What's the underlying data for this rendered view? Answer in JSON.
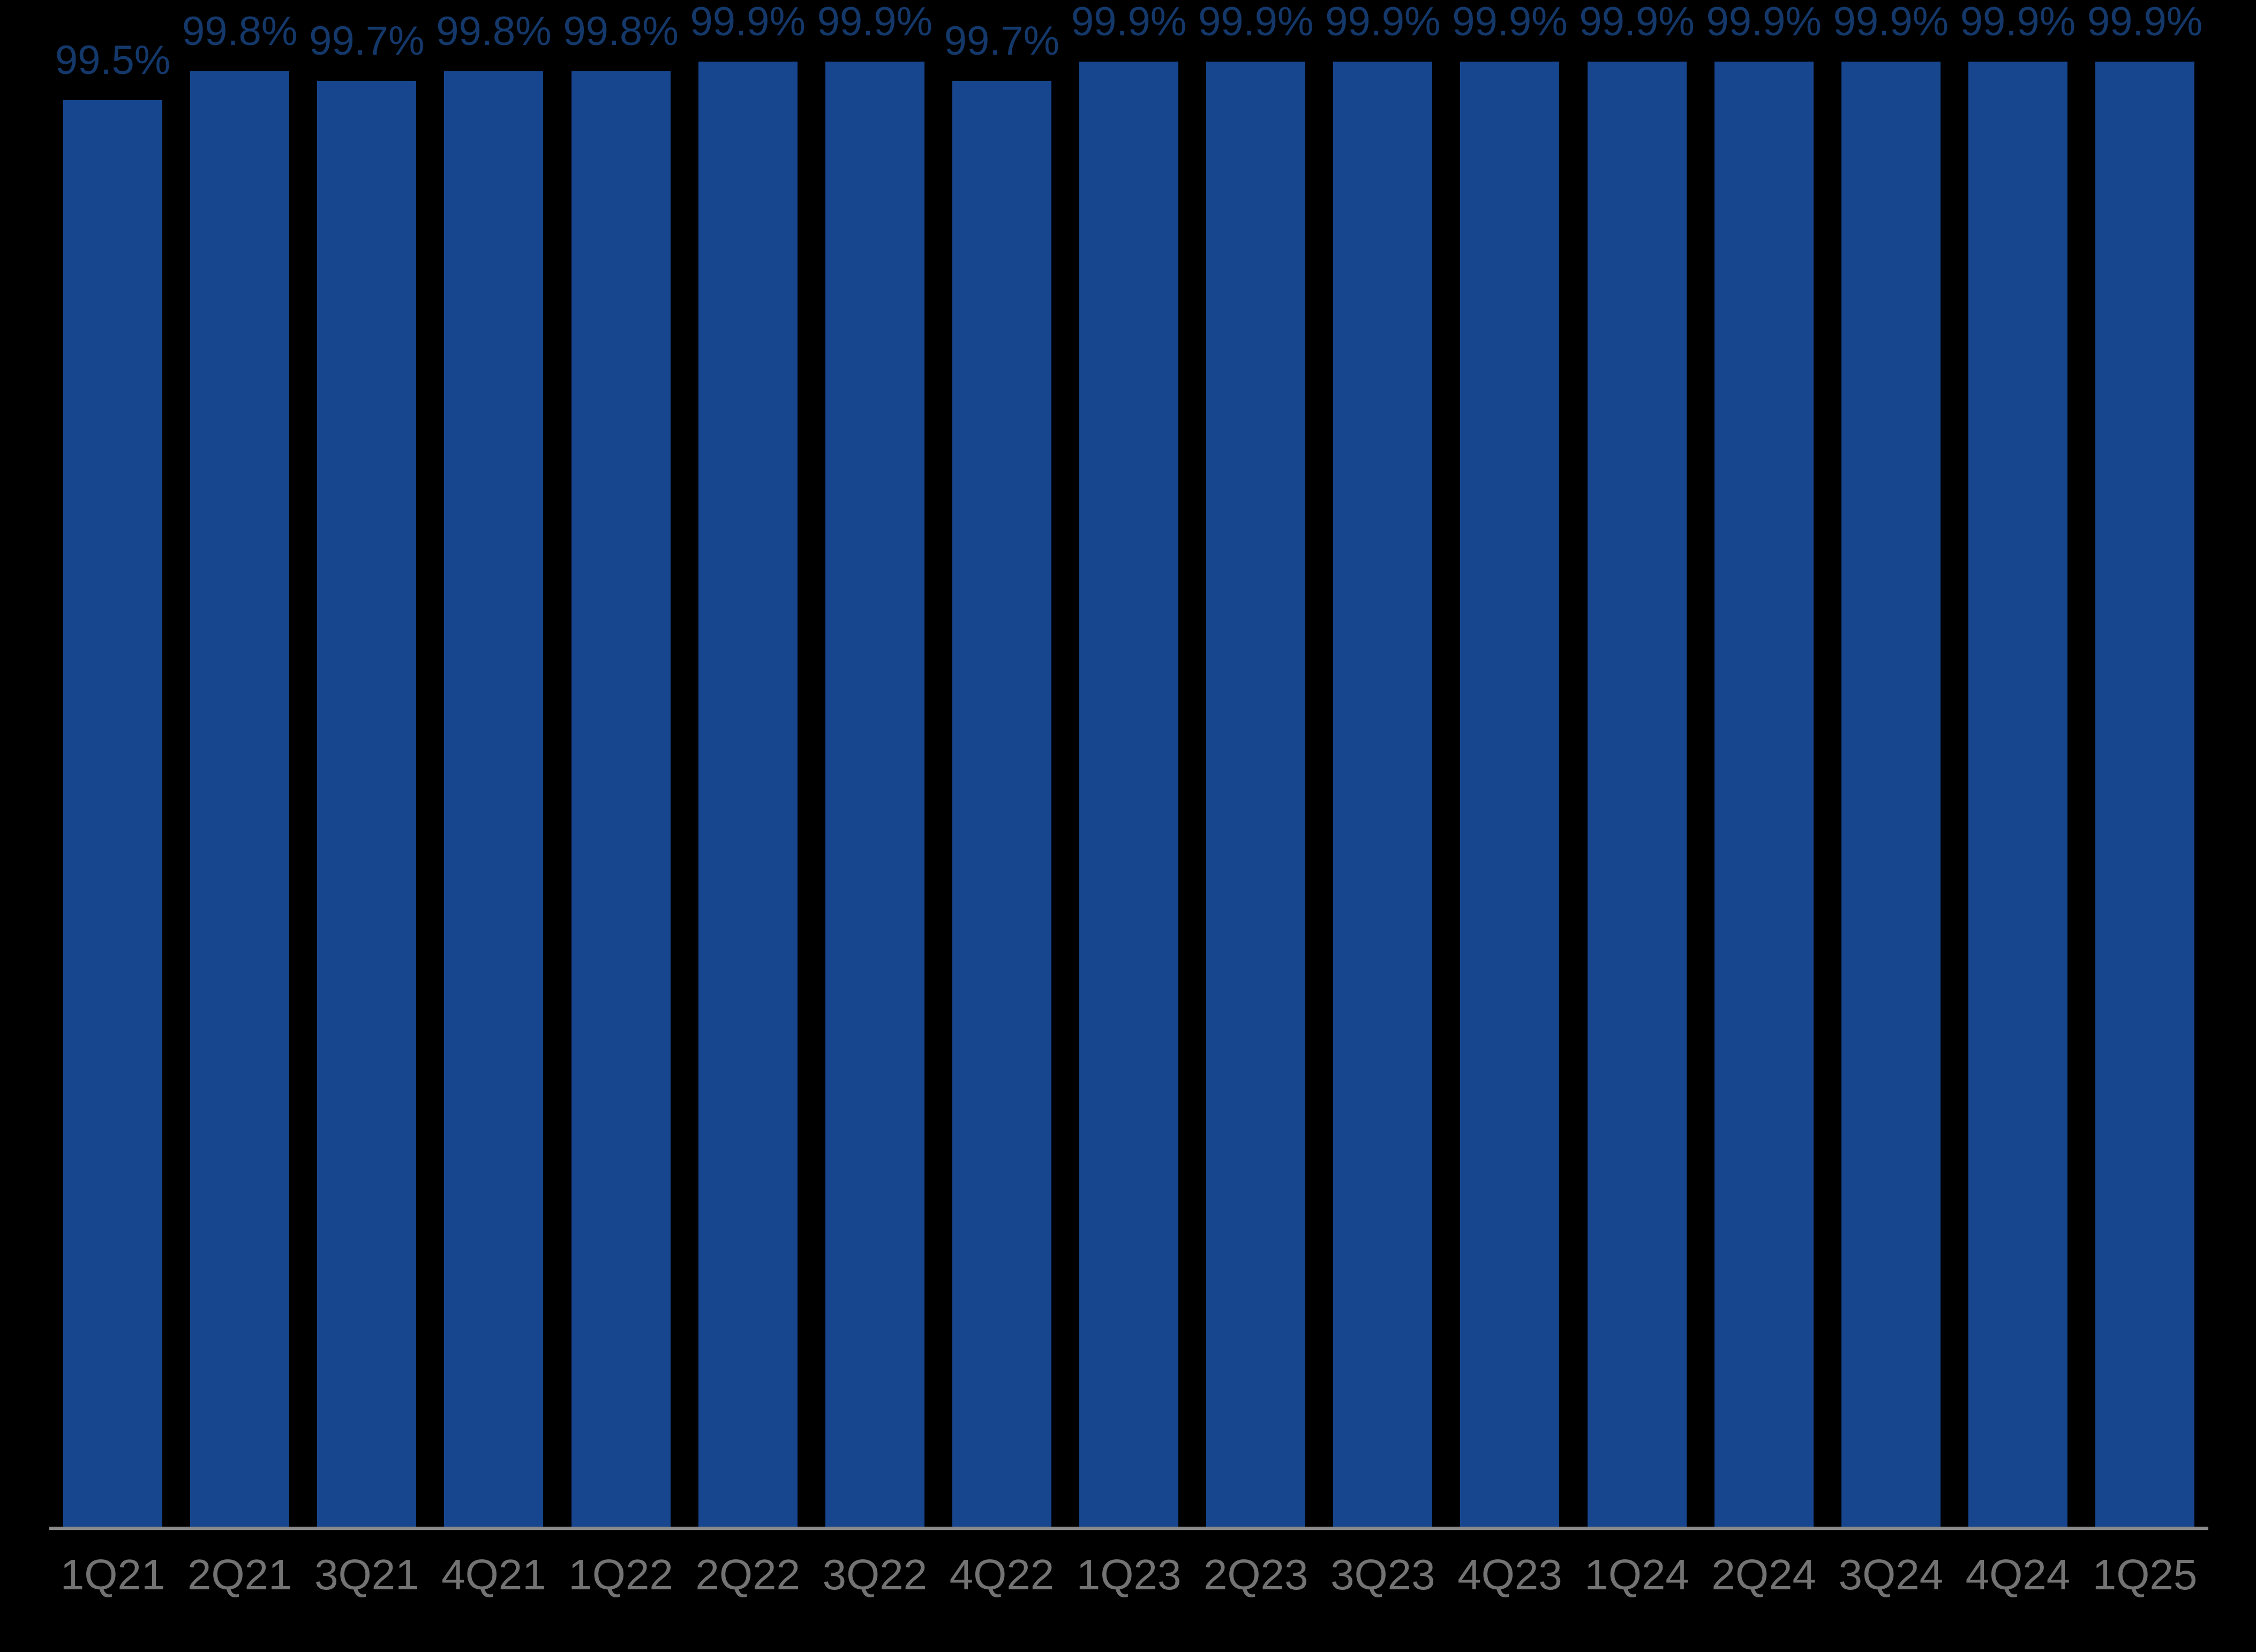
{
  "chart_data": {
    "type": "bar",
    "categories": [
      "1Q21",
      "2Q21",
      "3Q21",
      "4Q21",
      "1Q22",
      "2Q22",
      "3Q22",
      "4Q22",
      "1Q23",
      "2Q23",
      "3Q23",
      "4Q23",
      "1Q24",
      "2Q24",
      "3Q24",
      "4Q24",
      "1Q25"
    ],
    "values": [
      99.5,
      99.8,
      99.7,
      99.8,
      99.8,
      99.9,
      99.9,
      99.7,
      99.9,
      99.9,
      99.9,
      99.9,
      99.9,
      99.9,
      99.9,
      99.9,
      99.9
    ],
    "data_labels": [
      "99.5%",
      "99.8%",
      "99.7%",
      "99.8%",
      "99.8%",
      "99.9%",
      "99.9%",
      "99.7%",
      "99.9%",
      "99.9%",
      "99.9%",
      "99.9%",
      "99.9%",
      "99.9%",
      "99.9%",
      "99.9%",
      "99.9%"
    ],
    "title": "",
    "xlabel": "",
    "ylabel": "",
    "ylim": [
      84.7,
      100.54
    ],
    "grid": false,
    "legend": false,
    "colors": {
      "background": "#000000",
      "bar": "#17468F",
      "data_label": "#14386A",
      "tick_label": "#737373",
      "axis_line": "#8A8A8A"
    }
  }
}
